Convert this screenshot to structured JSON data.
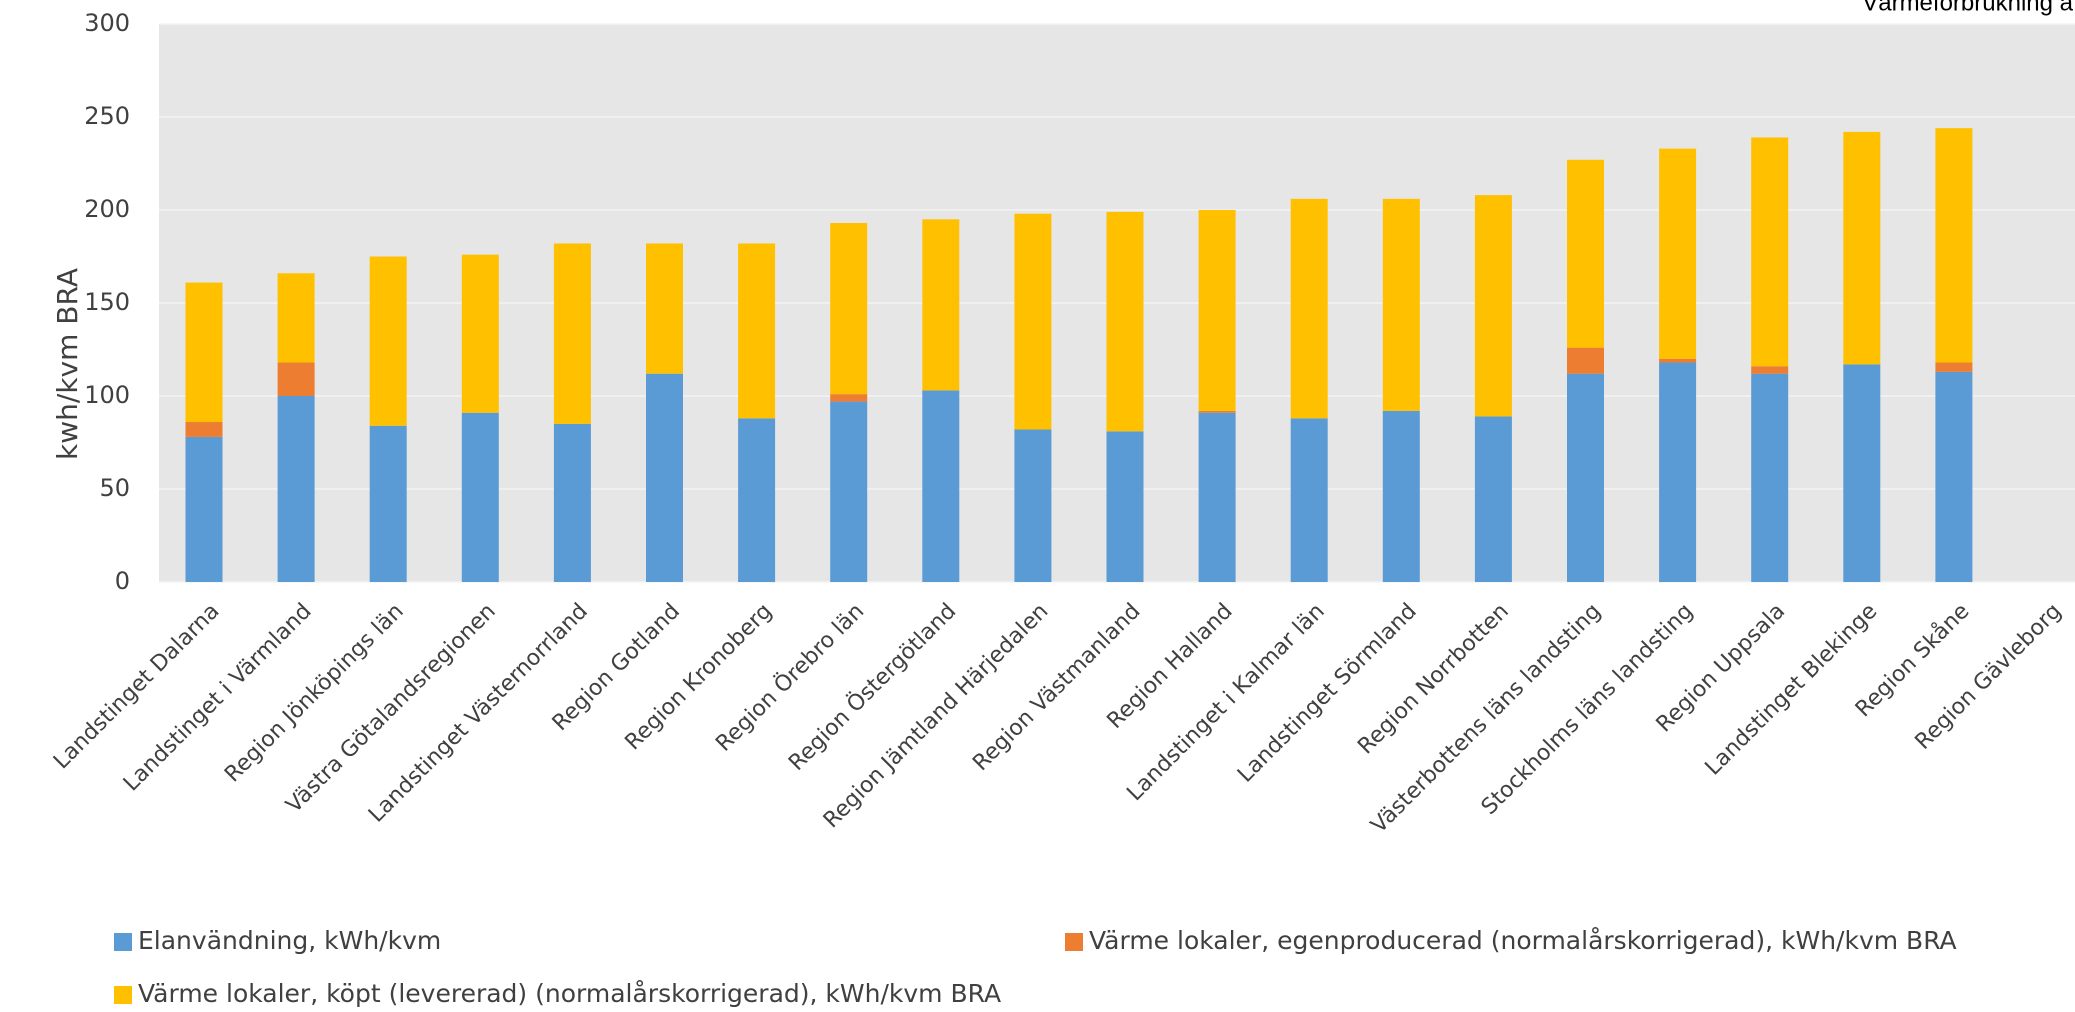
{
  "chart_data": {
    "type": "stacked_bar",
    "title": "Värmeförbrukning a",
    "y_label": "kwh/kvm BRA",
    "categories": [
      "Landstinget Dalarna",
      "Landstinget i Värmland",
      "Region Jönköpings län",
      "Västra Götalandsregionen",
      "Landstinget Västernorrland",
      "Region Gotland",
      "Region Kronoberg",
      "Region Örebro län",
      "Region Östergötland",
      "Region Jämtland Härjedalen",
      "Region Västmanland",
      "Region Halland",
      "Landstinget i Kalmar län",
      "Landstinget Sörmland",
      "Region Norrbotten",
      "Västerbottens läns landsting",
      "Stockholms läns landsting",
      "Region Uppsala",
      "Landstinget Blekinge",
      "Region Skåne",
      "Region Gävleborg"
    ],
    "series": [
      {
        "name": "Elanvändning, kWh/kvm",
        "color": "#5b9bd5",
        "values": [
          78,
          100,
          84,
          91,
          85,
          112,
          88,
          97,
          103,
          82,
          81,
          91,
          88,
          92,
          89,
          112,
          118,
          112,
          117,
          113,
          null
        ]
      },
      {
        "name": "Värme lokaler, egenproducerad (normalårskorrigerad), kWh/kvm BRA",
        "color": "#ed7d31",
        "values": [
          8,
          18,
          0,
          0,
          0,
          0,
          0,
          4,
          0,
          0,
          0,
          1,
          0,
          0,
          0,
          14,
          2,
          4,
          0,
          5,
          null
        ]
      },
      {
        "name": "Värme lokaler, köpt (levererad) (normalårskorrigerad), kWh/kvm BRA",
        "color": "#ffc000",
        "values": [
          75,
          48,
          91,
          85,
          97,
          70,
          94,
          92,
          92,
          116,
          118,
          108,
          118,
          114,
          119,
          101,
          113,
          123,
          125,
          126,
          null
        ]
      }
    ],
    "ylim": [
      0,
      300
    ],
    "yticks": [
      0,
      50,
      100,
      150,
      200,
      250,
      300
    ],
    "grid": true
  }
}
